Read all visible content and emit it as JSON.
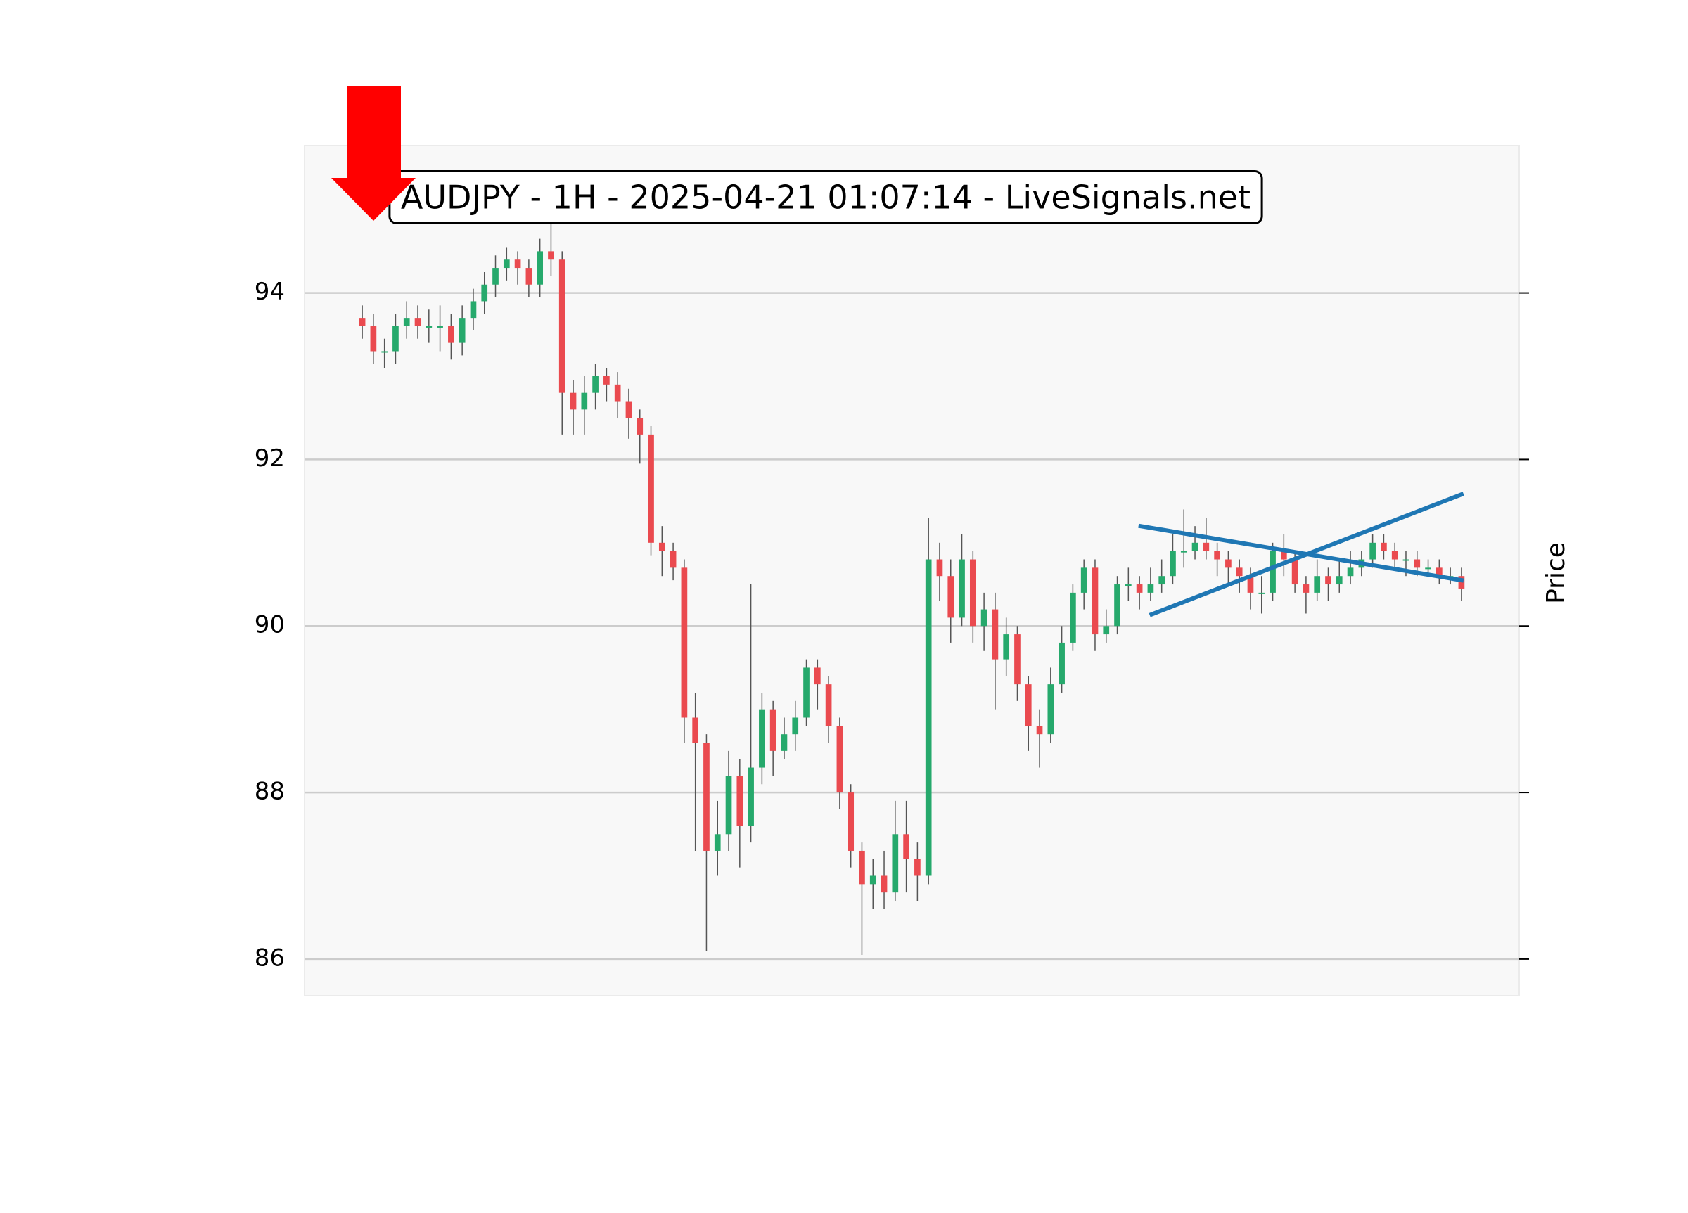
{
  "chart_data": {
    "type": "candlestick",
    "title": "AUDJPY - 1H - 2025-04-21 01:07:14 - LiveSignals.net",
    "y_label": "Price",
    "up_color": "#26a96c",
    "down_color": "#ea4a4f",
    "xlim": [
      -5.2,
      104.2
    ],
    "ylim": [
      85.56,
      95.77
    ],
    "yticks": [
      86,
      88,
      90,
      92,
      94
    ],
    "grid": true,
    "open": [
      93.7,
      93.6,
      93.3,
      93.3,
      93.6,
      93.7,
      93.6,
      93.6,
      93.6,
      93.4,
      93.7,
      93.9,
      94.1,
      94.3,
      94.4,
      94.3,
      94.1,
      94.5,
      94.4,
      92.8,
      92.6,
      92.8,
      93.0,
      92.9,
      92.7,
      92.5,
      92.3,
      91.0,
      90.9,
      90.7,
      88.9,
      88.6,
      87.3,
      87.5,
      88.2,
      87.6,
      88.3,
      89.0,
      88.5,
      88.7,
      88.9,
      89.5,
      89.3,
      88.8,
      88.0,
      87.3,
      86.9,
      87.0,
      86.8,
      87.5,
      87.2,
      87.0,
      90.8,
      90.6,
      90.1,
      90.8,
      90.0,
      90.2,
      89.6,
      89.9,
      89.3,
      88.8,
      88.7,
      89.3,
      89.8,
      90.4,
      90.7,
      89.9,
      90.0,
      90.5,
      90.5,
      90.4,
      90.5,
      90.6,
      90.9,
      90.9,
      91.0,
      90.9,
      90.8,
      90.7,
      90.6,
      90.4,
      90.4,
      90.9,
      90.8,
      90.5,
      90.4,
      90.6,
      90.5,
      90.6,
      90.7,
      90.8,
      91.0,
      90.9,
      90.8,
      90.8,
      90.7,
      90.7,
      90.6,
      90.6
    ],
    "high": [
      93.85,
      93.75,
      93.45,
      93.75,
      93.9,
      93.85,
      93.8,
      93.85,
      93.75,
      93.85,
      94.05,
      94.25,
      94.45,
      94.55,
      94.5,
      94.4,
      94.65,
      94.9,
      94.5,
      92.95,
      93.0,
      93.15,
      93.1,
      93.05,
      92.85,
      92.6,
      92.4,
      91.2,
      91.0,
      90.8,
      89.2,
      88.7,
      87.9,
      88.5,
      88.4,
      90.5,
      89.2,
      89.1,
      88.9,
      89.1,
      89.6,
      89.6,
      89.4,
      88.9,
      88.1,
      87.4,
      87.2,
      87.3,
      87.9,
      87.9,
      87.4,
      91.3,
      91.0,
      90.8,
      91.1,
      90.9,
      90.4,
      90.4,
      90.1,
      90.0,
      89.4,
      89.0,
      89.5,
      90.0,
      90.5,
      90.8,
      90.8,
      90.2,
      90.6,
      90.7,
      90.6,
      90.7,
      90.8,
      91.1,
      91.4,
      91.2,
      91.3,
      91.0,
      90.9,
      90.8,
      90.7,
      90.6,
      91.0,
      91.1,
      90.9,
      90.6,
      90.8,
      90.7,
      90.8,
      90.9,
      90.9,
      91.1,
      91.1,
      91.0,
      90.9,
      90.9,
      90.8,
      90.8,
      90.7,
      90.7
    ],
    "low": [
      93.45,
      93.15,
      93.1,
      93.15,
      93.45,
      93.45,
      93.4,
      93.3,
      93.2,
      93.25,
      93.55,
      93.75,
      93.95,
      94.15,
      94.1,
      93.95,
      93.95,
      94.2,
      92.3,
      92.3,
      92.3,
      92.6,
      92.7,
      92.5,
      92.25,
      91.95,
      90.85,
      90.6,
      90.55,
      88.6,
      87.3,
      86.1,
      87.0,
      87.3,
      87.1,
      87.4,
      88.1,
      88.2,
      88.4,
      88.5,
      88.8,
      89.0,
      88.6,
      87.8,
      87.1,
      86.05,
      86.6,
      86.6,
      86.7,
      86.8,
      86.7,
      86.9,
      90.3,
      89.8,
      90.0,
      89.8,
      89.7,
      89.0,
      89.4,
      89.1,
      88.5,
      88.3,
      88.6,
      89.2,
      89.7,
      90.2,
      89.7,
      89.8,
      89.9,
      90.3,
      90.2,
      90.3,
      90.4,
      90.5,
      90.7,
      90.8,
      90.8,
      90.6,
      90.5,
      90.4,
      90.2,
      90.15,
      90.3,
      90.6,
      90.4,
      90.15,
      90.3,
      90.3,
      90.4,
      90.5,
      90.6,
      90.7,
      90.8,
      90.7,
      90.6,
      90.6,
      90.6,
      90.5,
      90.5,
      90.3
    ],
    "close": [
      93.6,
      93.3,
      93.3,
      93.6,
      93.7,
      93.6,
      93.6,
      93.6,
      93.4,
      93.7,
      93.9,
      94.1,
      94.3,
      94.4,
      94.3,
      94.1,
      94.5,
      94.4,
      92.8,
      92.6,
      92.8,
      93.0,
      92.9,
      92.7,
      92.5,
      92.3,
      91.0,
      90.9,
      90.7,
      88.9,
      88.6,
      87.3,
      87.5,
      88.2,
      87.6,
      88.3,
      89.0,
      88.5,
      88.7,
      88.9,
      89.5,
      89.3,
      88.8,
      88.0,
      87.3,
      86.9,
      87.0,
      86.8,
      87.5,
      87.2,
      87.0,
      90.8,
      90.6,
      90.1,
      90.8,
      90.0,
      90.2,
      89.6,
      89.9,
      89.3,
      88.8,
      88.7,
      89.3,
      89.8,
      90.4,
      90.7,
      89.9,
      90.0,
      90.5,
      90.5,
      90.4,
      90.5,
      90.6,
      90.9,
      90.9,
      91.0,
      90.9,
      90.8,
      90.7,
      90.6,
      90.4,
      90.4,
      90.9,
      90.8,
      90.5,
      90.4,
      90.6,
      90.5,
      90.6,
      90.7,
      90.8,
      91.0,
      90.9,
      90.8,
      90.8,
      90.7,
      90.7,
      90.6,
      90.6,
      90.45
    ],
    "trend_lines": [
      {
        "color": "#1f77b4",
        "x": [
          70.1,
          99
        ],
        "y": [
          91.2,
          90.55
        ]
      },
      {
        "color": "#1f77b4",
        "x": [
          71.1,
          99
        ],
        "y": [
          90.14,
          91.58
        ]
      }
    ]
  }
}
